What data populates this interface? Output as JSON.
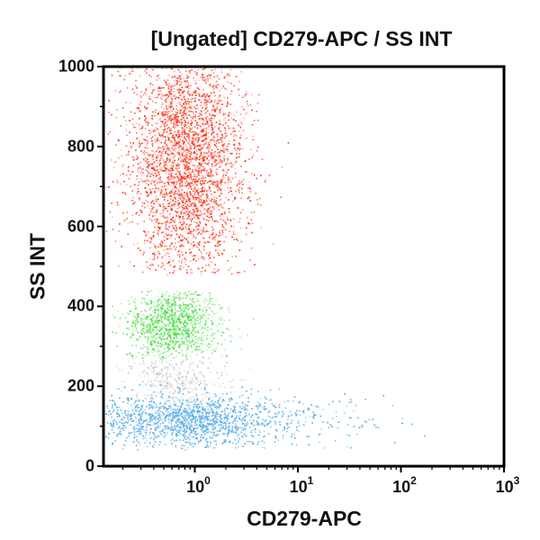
{
  "chart_data": {
    "type": "scatter",
    "title": "[Ungated] CD279-APC / SS INT",
    "xlabel": "CD279-APC",
    "ylabel": "SS INT",
    "xscale": "log",
    "xlim": [
      0.13,
      1000
    ],
    "ylim": [
      0,
      1000
    ],
    "x_ticks": [
      {
        "base": "10",
        "exp": "0",
        "value": 1
      },
      {
        "base": "10",
        "exp": "1",
        "value": 10
      },
      {
        "base": "10",
        "exp": "2",
        "value": 100
      },
      {
        "base": "10",
        "exp": "3",
        "value": 1000
      }
    ],
    "y_ticks": [
      "0",
      "200",
      "400",
      "600",
      "800",
      "1000"
    ],
    "grid": false,
    "legend": null,
    "populations": [
      {
        "name": "red population",
        "color": "#ff2a10",
        "x_center": 0.8,
        "x_spread_log": 0.28,
        "y_center": 760,
        "y_spread": 150,
        "y_range": [
          480,
          1000
        ],
        "count": 5200
      },
      {
        "name": "green population",
        "color": "#2ed62a",
        "x_center": 0.6,
        "x_spread_log": 0.22,
        "y_center": 355,
        "y_spread": 45,
        "y_range": [
          270,
          440
        ],
        "count": 1300
      },
      {
        "name": "gray population",
        "color": "#b8b8b8",
        "x_center": 0.6,
        "x_spread_log": 0.25,
        "y_center": 220,
        "y_spread": 35,
        "y_range": [
          160,
          290
        ],
        "count": 400
      },
      {
        "name": "blue population",
        "color": "#5aaee8",
        "x_center": 0.6,
        "x_spread_log": 0.45,
        "y_center": 115,
        "y_spread": 32,
        "y_range": [
          40,
          210
        ],
        "count": 3800
      }
    ]
  },
  "title": "[Ungated] CD279-APC / SS INT",
  "xlabel": "CD279-APC",
  "ylabel": "SS INT"
}
